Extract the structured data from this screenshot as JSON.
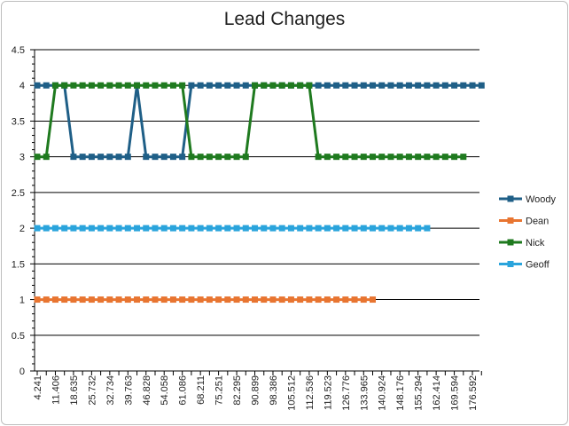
{
  "chart_data": {
    "type": "line",
    "title": "Lead Changes",
    "xlabel": "",
    "ylabel": "",
    "ylim": [
      0,
      4.5
    ],
    "y_ticks": [
      "0",
      "0.5",
      "1",
      "1.5",
      "2",
      "2.5",
      "3",
      "3.5",
      "4",
      "4.5"
    ],
    "x_tick_labels": [
      "4.241",
      "11.406",
      "18.635",
      "25.732",
      "32.734",
      "39.763",
      "46.828",
      "54.058",
      "61.086",
      "68.211",
      "75.251",
      "82.295",
      "90.899",
      "98.386",
      "105.512",
      "112.536",
      "119.523",
      "126.776",
      "133.965",
      "140.924",
      "148.176",
      "155.294",
      "162.414",
      "169.594",
      "176.592"
    ],
    "grid": "horizontal",
    "legend_position": "right",
    "series": [
      {
        "name": "Woody",
        "color": "#1f5f87",
        "values": [
          4,
          4,
          4,
          4,
          3,
          3,
          3,
          3,
          3,
          3,
          3,
          4,
          3,
          3,
          3,
          3,
          3,
          4,
          4,
          4,
          4,
          4,
          4,
          4,
          4,
          4,
          4,
          4,
          4,
          4,
          4,
          4,
          4,
          4,
          4,
          4,
          4,
          4,
          4,
          4,
          4,
          4,
          4,
          4,
          4,
          4,
          4,
          4,
          4,
          4
        ]
      },
      {
        "name": "Dean",
        "color": "#e87531",
        "values": [
          1,
          1,
          1,
          1,
          1,
          1,
          1,
          1,
          1,
          1,
          1,
          1,
          1,
          1,
          1,
          1,
          1,
          1,
          1,
          1,
          1,
          1,
          1,
          1,
          1,
          1,
          1,
          1,
          1,
          1,
          1,
          1,
          1,
          1,
          1,
          1,
          1,
          1
        ]
      },
      {
        "name": "Nick",
        "color": "#1f7a1f",
        "values": [
          3,
          3,
          4,
          4,
          4,
          4,
          4,
          4,
          4,
          4,
          4,
          4,
          4,
          4,
          4,
          4,
          4,
          3,
          3,
          3,
          3,
          3,
          3,
          3,
          4,
          4,
          4,
          4,
          4,
          4,
          4,
          3,
          3,
          3,
          3,
          3,
          3,
          3,
          3,
          3,
          3,
          3,
          3,
          3,
          3,
          3,
          3,
          3
        ]
      },
      {
        "name": "Geoff",
        "color": "#2aa4dc",
        "values": [
          2,
          2,
          2,
          2,
          2,
          2,
          2,
          2,
          2,
          2,
          2,
          2,
          2,
          2,
          2,
          2,
          2,
          2,
          2,
          2,
          2,
          2,
          2,
          2,
          2,
          2,
          2,
          2,
          2,
          2,
          2,
          2,
          2,
          2,
          2,
          2,
          2,
          2,
          2,
          2,
          2,
          2,
          2,
          2
        ]
      }
    ]
  }
}
